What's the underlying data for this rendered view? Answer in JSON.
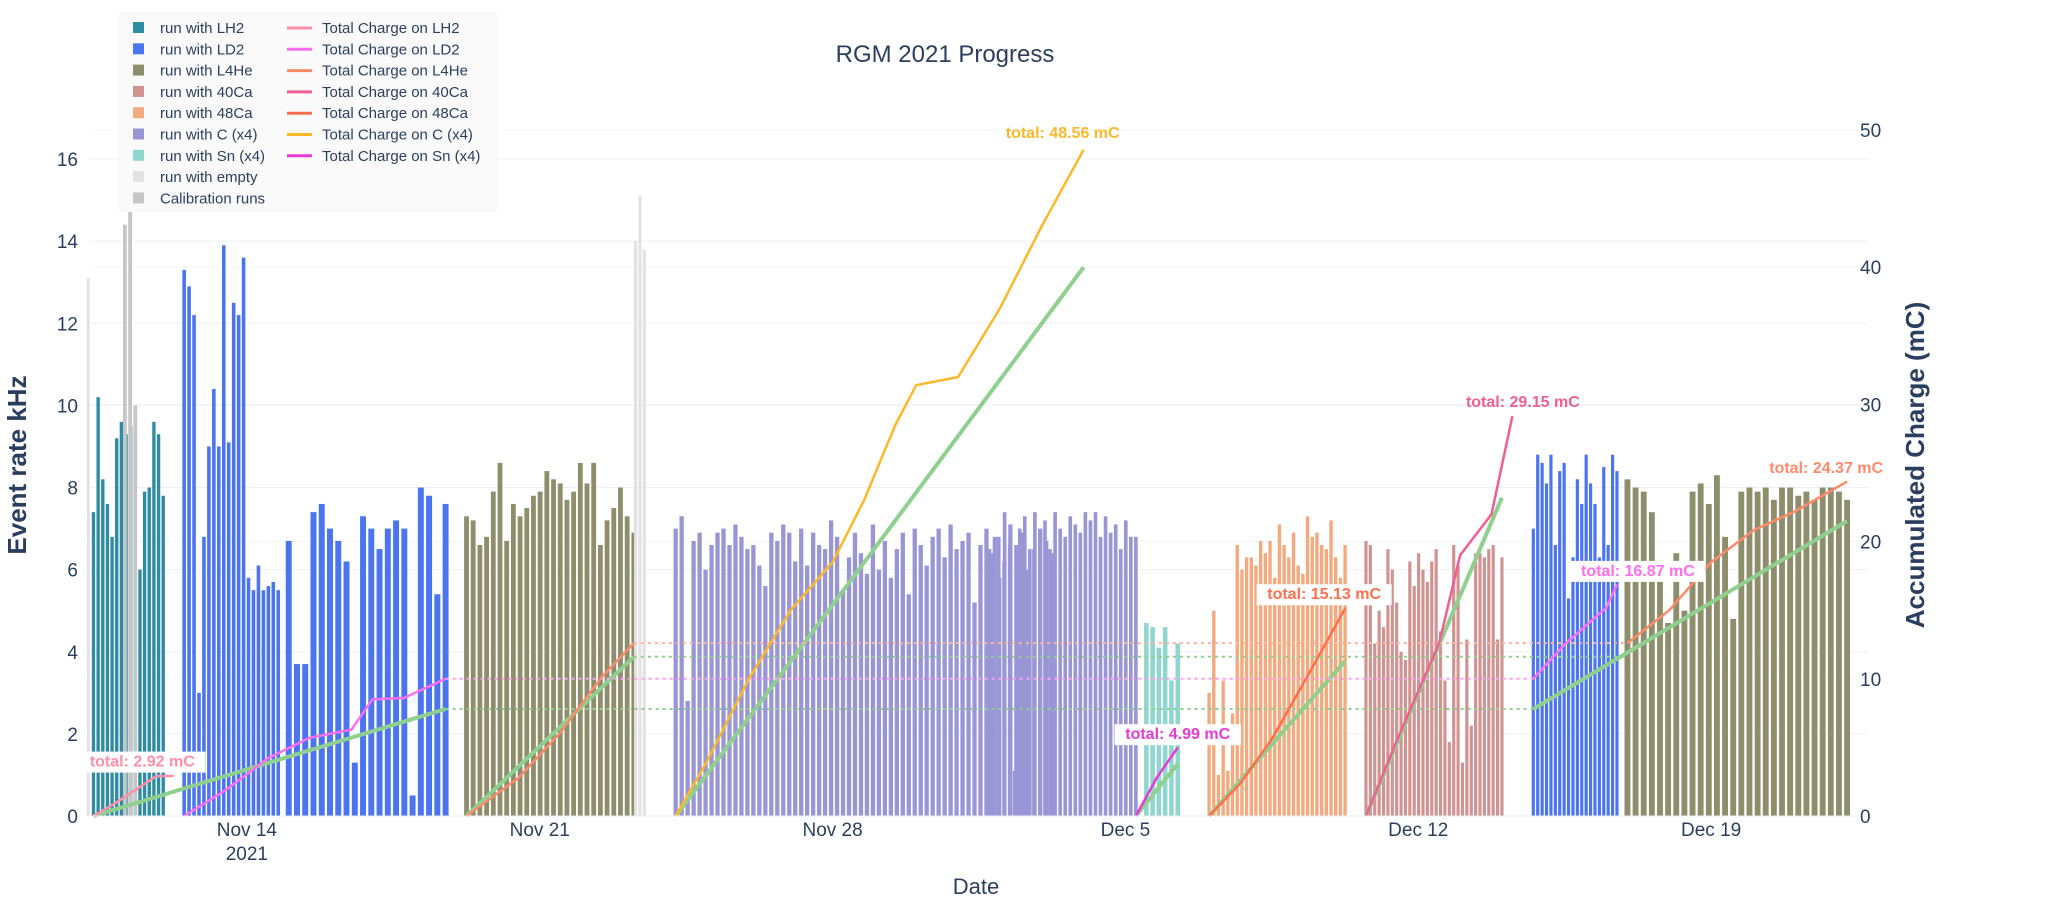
{
  "chart_data": {
    "type": "bar",
    "title": "RGM 2021 Progress",
    "xlabel": "Date",
    "ylabel": "Event rate kHz",
    "y2label": "Accumulated Charge (mC)",
    "ylim": [
      0,
      17
    ],
    "y2lim": [
      0,
      50
    ],
    "y_ticks": [
      0,
      2,
      4,
      6,
      8,
      10,
      12,
      14,
      16
    ],
    "y2_ticks": [
      0,
      10,
      20,
      30,
      40,
      50
    ],
    "x_range": [
      "2021-11-10T06:00",
      "2021-12-22T18:00"
    ],
    "x_ticks": [
      {
        "date": "2021-11-14",
        "label": "Nov 14",
        "sublabel": "2021"
      },
      {
        "date": "2021-11-21",
        "label": "Nov 21",
        "sublabel": ""
      },
      {
        "date": "2021-11-28",
        "label": "Nov 28",
        "sublabel": ""
      },
      {
        "date": "2021-12-05",
        "label": "Dec 5",
        "sublabel": ""
      },
      {
        "date": "2021-12-12",
        "label": "Dec 12",
        "sublabel": ""
      },
      {
        "date": "2021-12-19",
        "label": "Dec 19",
        "sublabel": ""
      }
    ],
    "grid": true,
    "legend_position": "top-left",
    "legend": [
      {
        "name": "run with LH2",
        "type": "bar",
        "color": "#2e8ba3"
      },
      {
        "name": "run with LD2",
        "type": "bar",
        "color": "#4a74f0"
      },
      {
        "name": "run with L4He",
        "type": "bar",
        "color": "#8f8e6c"
      },
      {
        "name": "run with 40Ca",
        "type": "bar",
        "color": "#d09392"
      },
      {
        "name": "run with 48Ca",
        "type": "bar",
        "color": "#f3aa7e"
      },
      {
        "name": "run with C (x4)",
        "type": "bar",
        "color": "#9a96d6"
      },
      {
        "name": "run with Sn (x4)",
        "type": "bar",
        "color": "#8ed6cf"
      },
      {
        "name": "run with empty",
        "type": "bar",
        "color": "#e2e2e2"
      },
      {
        "name": "Calibration runs",
        "type": "bar",
        "color": "#c6c6c6"
      },
      {
        "name": "Total Charge on LH2",
        "type": "line",
        "color": "#ff8fa8"
      },
      {
        "name": "Total Charge on LD2",
        "type": "line",
        "color": "#ff6ef0"
      },
      {
        "name": "Total Charge on L4He",
        "type": "line",
        "color": "#ff8a6a"
      },
      {
        "name": "Total Charge on 40Ca",
        "type": "line",
        "color": "#f25d93"
      },
      {
        "name": "Total Charge on 48Ca",
        "type": "line",
        "color": "#ff6f4e"
      },
      {
        "name": "Total Charge on C (x4)",
        "type": "line",
        "color": "#fdb827"
      },
      {
        "name": "Total Charge on Sn (x4)",
        "type": "line",
        "color": "#e73ad6"
      }
    ],
    "bar_segments": [
      {
        "series": "run with LH2",
        "start": "2021-11-10T08:00",
        "end": "2021-11-12T00:00",
        "count": 16,
        "values": [
          7.4,
          10.2,
          8.2,
          7.6,
          6.8,
          9.2,
          9.6,
          9.3,
          9.5,
          6.2,
          6.0,
          7.9,
          8.0,
          9.6,
          9.3,
          7.8
        ]
      },
      {
        "series": "run with LD2",
        "start": "2021-11-12T12:00",
        "end": "2021-11-14T18:00",
        "count": 20,
        "values": [
          13.3,
          12.9,
          12.2,
          3.0,
          6.8,
          9.0,
          10.4,
          9.0,
          13.9,
          9.1,
          12.5,
          12.2,
          13.6,
          5.8,
          5.5,
          6.1,
          5.5,
          5.6,
          5.7,
          5.5
        ]
      },
      {
        "series": "run with LD2",
        "start": "2021-11-15T00:00",
        "end": "2021-11-18T18:00",
        "count": 20,
        "values": [
          6.7,
          3.7,
          3.7,
          7.4,
          7.6,
          7.0,
          6.7,
          6.2,
          1.3,
          7.3,
          7.0,
          6.5,
          7.0,
          7.2,
          7.0,
          0.5,
          8.0,
          7.8,
          5.4,
          7.6
        ]
      },
      {
        "series": "run with L4He",
        "start": "2021-11-19T06:00",
        "end": "2021-11-23T06:00",
        "count": 26,
        "values": [
          7.3,
          7.2,
          6.6,
          6.8,
          7.9,
          8.6,
          6.7,
          7.6,
          7.3,
          7.5,
          7.8,
          7.9,
          8.4,
          8.2,
          8.1,
          7.7,
          7.9,
          8.6,
          8.1,
          8.6,
          6.6,
          7.2,
          7.5,
          8.0,
          7.3,
          6.9
        ]
      },
      {
        "series": "run with C (x4)",
        "start": "2021-11-24T06:00",
        "end": "2021-12-03T06:00",
        "count": 64,
        "values": [
          7.0,
          7.3,
          2.8,
          6.7,
          6.9,
          6.0,
          6.6,
          6.9,
          7.0,
          6.6,
          7.1,
          6.8,
          6.5,
          6.6,
          6.1,
          5.6,
          6.9,
          6.7,
          7.1,
          6.9,
          6.2,
          7.0,
          6.1,
          6.9,
          6.6,
          6.5,
          7.2,
          6.8,
          5.5,
          6.3,
          6.9,
          6.4,
          5.9,
          7.1,
          6.0,
          6.7,
          5.8,
          6.5,
          6.9,
          5.4,
          7.0,
          6.6,
          6.1,
          6.8,
          7.0,
          6.3,
          7.1,
          6.5,
          6.7,
          6.9,
          5.2,
          6.6,
          7.0,
          6.4,
          6.8,
          6.2,
          7.1,
          6.6,
          6.9,
          6.0,
          6.5,
          7.0,
          6.7,
          6.4
        ]
      },
      {
        "series": "run with C (x4)",
        "start": "2021-12-01T18:00",
        "end": "2021-12-05T06:00",
        "count": 30,
        "values": [
          6.5,
          6.8,
          5.8,
          7.4,
          6.6,
          1.1,
          7.0,
          7.3,
          6.5,
          7.4,
          6.9,
          7.2,
          6.5,
          7.4,
          7.0,
          6.8,
          7.3,
          7.1,
          6.9,
          7.4,
          7.2,
          7.4,
          6.8,
          7.3,
          6.9,
          7.1,
          6.5,
          7.2,
          6.8,
          6.8
        ]
      },
      {
        "series": "run with Sn (x4)",
        "start": "2021-12-05T12:00",
        "end": "2021-12-06T06:00",
        "count": 6,
        "values": [
          4.7,
          4.6,
          4.1,
          4.6,
          3.3,
          4.2
        ]
      },
      {
        "series": "run with 48Ca",
        "start": "2021-12-07T00:00",
        "end": "2021-12-10T06:00",
        "count": 30,
        "values": [
          3.0,
          5.0,
          1.0,
          3.3,
          1.1,
          2.5,
          6.6,
          6.0,
          6.3,
          6.3,
          6.1,
          6.7,
          6.4,
          6.7,
          5.8,
          7.1,
          6.6,
          6.3,
          6.9,
          6.1,
          5.9,
          7.3,
          6.8,
          6.9,
          6.6,
          6.5,
          7.2,
          6.3,
          5.8,
          6.6
        ]
      },
      {
        "series": "run with 40Ca",
        "start": "2021-12-10T18:00",
        "end": "2021-12-14T00:00",
        "count": 32,
        "values": [
          6.7,
          6.6,
          4.2,
          5.0,
          4.6,
          6.5,
          6.0,
          5.2,
          4.0,
          3.8,
          6.2,
          5.6,
          6.4,
          6.0,
          5.7,
          6.2,
          6.5,
          4.5,
          3.3,
          1.8,
          6.6,
          6.1,
          1.3,
          4.3,
          2.2,
          6.4,
          6.4,
          6.3,
          6.5,
          6.6,
          4.3,
          6.3
        ]
      },
      {
        "series": "run with LD2",
        "start": "2021-12-14T18:00",
        "end": "2021-12-16T18:00",
        "count": 20,
        "values": [
          7.0,
          8.8,
          8.6,
          8.1,
          8.8,
          6.6,
          8.4,
          8.6,
          5.3,
          6.3,
          8.2,
          7.6,
          8.8,
          8.1,
          7.6,
          6.3,
          8.5,
          6.6,
          8.8,
          8.4
        ]
      },
      {
        "series": "run with L4He",
        "start": "2021-12-17T00:00",
        "end": "2021-12-22T06:00",
        "count": 28,
        "values": [
          8.2,
          8.0,
          7.9,
          7.4,
          6.2,
          4.7,
          6.4,
          5.0,
          7.9,
          8.1,
          7.6,
          8.3,
          6.8,
          4.8,
          7.9,
          8.0,
          7.9,
          8.0,
          7.7,
          8.0,
          8.0,
          7.8,
          7.9,
          7.7,
          8.0,
          8.0,
          7.9,
          7.7
        ]
      },
      {
        "series": "run with empty",
        "start": "2021-11-10T05:00",
        "end": "2021-11-10T06:00",
        "count": 1,
        "values": [
          13.1
        ]
      },
      {
        "series": "Calibration runs",
        "start": "2021-11-11T02:00",
        "end": "2021-11-11T08:00",
        "count": 3,
        "values": [
          14.4,
          15.0,
          10.0
        ]
      },
      {
        "series": "run with empty",
        "start": "2021-11-23T07:00",
        "end": "2021-11-23T12:00",
        "count": 3,
        "values": [
          14.0,
          15.1,
          13.8
        ]
      }
    ],
    "charge_lines": [
      {
        "series": "Total Charge on LH2",
        "points": [
          [
            "2021-11-10T08:00",
            0
          ],
          [
            "2021-11-10T20:00",
            0.9
          ],
          [
            "2021-11-11T08:00",
            1.9
          ],
          [
            "2021-11-11T20:00",
            2.9
          ],
          [
            "2021-11-12T06:00",
            2.92
          ]
        ]
      },
      {
        "series": "Total Charge on LD2",
        "points": [
          [
            "2021-11-12T12:00",
            0
          ],
          [
            "2021-11-13T12:00",
            1.9
          ],
          [
            "2021-11-14T12:00",
            4.2
          ],
          [
            "2021-11-15T12:00",
            5.7
          ],
          [
            "2021-11-16T12:00",
            6.3
          ],
          [
            "2021-11-17T00:00",
            8.5
          ],
          [
            "2021-11-17T18:00",
            8.6
          ],
          [
            "2021-11-18T18:00",
            10.0
          ]
        ]
      },
      {
        "series": "Total Charge on LD2",
        "points": [
          [
            "2021-12-14T18:00",
            10.0
          ],
          [
            "2021-12-15T12:00",
            12.5
          ],
          [
            "2021-12-16T12:00",
            15.2
          ],
          [
            "2021-12-16T18:00",
            16.87
          ]
        ]
      },
      {
        "series": "Total Charge on L4He",
        "points": [
          [
            "2021-11-19T06:00",
            0
          ],
          [
            "2021-11-20T12:00",
            2.8
          ],
          [
            "2021-11-21T12:00",
            6.1
          ],
          [
            "2021-11-22T12:00",
            10.2
          ],
          [
            "2021-11-23T06:00",
            12.6
          ]
        ]
      },
      {
        "series": "Total Charge on L4He",
        "points": [
          [
            "2021-12-17T00:00",
            12.6
          ],
          [
            "2021-12-18T00:00",
            15.0
          ],
          [
            "2021-12-19T00:00",
            18.5
          ],
          [
            "2021-12-20T00:00",
            20.8
          ],
          [
            "2021-12-21T00:00",
            22.2
          ],
          [
            "2021-12-22T06:00",
            24.37
          ]
        ]
      },
      {
        "series": "Total Charge on C (x4)",
        "points": [
          [
            "2021-11-24T06:00",
            0
          ],
          [
            "2021-11-25T00:00",
            4.0
          ],
          [
            "2021-11-26T00:00",
            10.0
          ],
          [
            "2021-11-27T00:00",
            15.0
          ],
          [
            "2021-11-28T00:00",
            18.5
          ],
          [
            "2021-11-28T18:00",
            23.0
          ],
          [
            "2021-11-29T12:00",
            28.5
          ],
          [
            "2021-11-30T00:00",
            31.4
          ],
          [
            "2021-12-01T00:00",
            32.0
          ],
          [
            "2021-12-02T00:00",
            37.0
          ],
          [
            "2021-12-03T00:00",
            43.0
          ],
          [
            "2021-12-04T00:00",
            48.56
          ]
        ]
      },
      {
        "series": "Total Charge on Sn (x4)",
        "points": [
          [
            "2021-12-05T06:00",
            0
          ],
          [
            "2021-12-05T18:00",
            2.8
          ],
          [
            "2021-12-06T06:00",
            4.99
          ]
        ]
      },
      {
        "series": "Total Charge on 48Ca",
        "points": [
          [
            "2021-12-07T00:00",
            0
          ],
          [
            "2021-12-07T18:00",
            2.4
          ],
          [
            "2021-12-08T12:00",
            5.6
          ],
          [
            "2021-12-09T12:00",
            11.0
          ],
          [
            "2021-12-10T06:00",
            15.13
          ]
        ]
      },
      {
        "series": "Total Charge on 40Ca",
        "points": [
          [
            "2021-12-10T18:00",
            0
          ],
          [
            "2021-12-11T12:00",
            5.6
          ],
          [
            "2021-12-12T12:00",
            12.6
          ],
          [
            "2021-12-13T00:00",
            19.0
          ],
          [
            "2021-12-13T18:00",
            22.0
          ],
          [
            "2021-12-14T06:00",
            29.15
          ]
        ]
      }
    ],
    "reference_lines": [
      {
        "color": "#8fd08f",
        "dashed": false,
        "points": [
          [
            "2021-11-10T08:00",
            0
          ],
          [
            "2021-11-18T18:00",
            7.8
          ]
        ]
      },
      {
        "color": "#8fd08f",
        "dashed": true,
        "points": [
          [
            "2021-11-18T18:00",
            7.8
          ],
          [
            "2021-12-14T18:00",
            7.8
          ]
        ]
      },
      {
        "color": "#8fd08f",
        "dashed": false,
        "points": [
          [
            "2021-12-14T18:00",
            7.8
          ],
          [
            "2021-12-22T06:00",
            21.5
          ]
        ]
      },
      {
        "color": "#8fd08f",
        "dashed": false,
        "points": [
          [
            "2021-11-19T06:00",
            0
          ],
          [
            "2021-11-23T06:00",
            11.6
          ]
        ]
      },
      {
        "color": "#8fd08f",
        "dashed": true,
        "points": [
          [
            "2021-11-23T06:00",
            11.6
          ],
          [
            "2021-12-17T00:00",
            11.6
          ]
        ]
      },
      {
        "color": "#8fd08f",
        "dashed": false,
        "points": [
          [
            "2021-11-24T06:00",
            0
          ],
          [
            "2021-12-04T00:00",
            40.0
          ]
        ]
      },
      {
        "color": "#8fd08f",
        "dashed": false,
        "points": [
          [
            "2021-12-05T06:00",
            0
          ],
          [
            "2021-12-06T06:00",
            3.8
          ]
        ]
      },
      {
        "color": "#8fd08f",
        "dashed": false,
        "points": [
          [
            "2021-12-07T00:00",
            0
          ],
          [
            "2021-12-10T06:00",
            11.3
          ]
        ]
      },
      {
        "color": "#8fd08f",
        "dashed": false,
        "points": [
          [
            "2021-12-10T18:00",
            0
          ],
          [
            "2021-12-14T00:00",
            23.2
          ]
        ]
      },
      {
        "color": "#ffb5a0",
        "dashed": true,
        "points": [
          [
            "2021-11-23T06:00",
            12.6
          ],
          [
            "2021-12-17T00:00",
            12.6
          ]
        ]
      },
      {
        "color": "#ff9ff2",
        "dashed": true,
        "points": [
          [
            "2021-11-18T18:00",
            10.0
          ],
          [
            "2021-12-14T18:00",
            10.0
          ]
        ]
      }
    ],
    "annotations": [
      {
        "text": "total: 2.92 mC",
        "x": "2021-11-11T12:00",
        "y2": 3.6,
        "color": "#ff8fa8",
        "box": true
      },
      {
        "text": "total: 48.56 mC",
        "x": "2021-12-03T12:00",
        "y2": 49.4,
        "color": "#fdb827",
        "box": false
      },
      {
        "text": "total: 4.99 mC",
        "x": "2021-12-06T06:00",
        "y2": 5.6,
        "color": "#e73ad6",
        "box": true
      },
      {
        "text": "total: 15.13 mC",
        "x": "2021-12-09T18:00",
        "y2": 15.8,
        "color": "#ff6f4e",
        "box": true
      },
      {
        "text": "total: 29.15 mC",
        "x": "2021-12-14T12:00",
        "y2": 29.8,
        "color": "#f25d93",
        "box": false
      },
      {
        "text": "total: 16.87 mC",
        "x": "2021-12-17T06:00",
        "y2": 17.5,
        "color": "#ff6ef0",
        "box": true
      },
      {
        "text": "total: 24.37 mC",
        "x": "2021-12-21T18:00",
        "y2": 25.0,
        "color": "#ff8a6a",
        "box": false
      }
    ]
  }
}
